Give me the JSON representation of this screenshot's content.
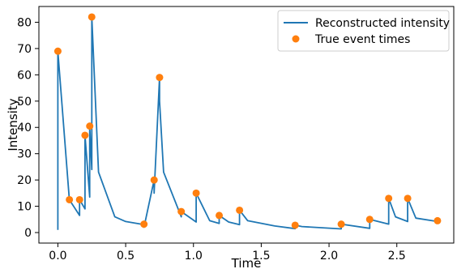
{
  "chart_data": {
    "type": "line",
    "xlabel": "Time",
    "ylabel": "Intensity",
    "xlim": [
      -0.14,
      2.92
    ],
    "ylim": [
      -4,
      86
    ],
    "xticks": [
      0.0,
      0.5,
      1.0,
      1.5,
      2.0,
      2.5
    ],
    "xtick_labels": [
      "0.0",
      "0.5",
      "1.0",
      "1.5",
      "2.0",
      "2.5"
    ],
    "yticks": [
      0,
      10,
      20,
      30,
      40,
      50,
      60,
      70,
      80
    ],
    "ytick_labels": [
      "0",
      "10",
      "20",
      "30",
      "40",
      "50",
      "60",
      "70",
      "80"
    ],
    "grid": false,
    "legend_position": "top-right",
    "series": [
      {
        "name": "Reconstructed intensity",
        "kind": "line",
        "color": "#1f77b4",
        "x": [
          0.0,
          0.0,
          0.085,
          0.085,
          0.16,
          0.16,
          0.2,
          0.2,
          0.235,
          0.235,
          0.25,
          0.25,
          0.3,
          0.42,
          0.5,
          0.635,
          0.635,
          0.71,
          0.71,
          0.75,
          0.75,
          0.78,
          0.91,
          0.91,
          1.02,
          1.02,
          1.12,
          1.19,
          1.19,
          1.26,
          1.34,
          1.34,
          1.4,
          1.6,
          1.75,
          1.75,
          1.8,
          2.09,
          2.09,
          2.3,
          2.3,
          2.44,
          2.44,
          2.49,
          2.58,
          2.58,
          2.64,
          2.8
        ],
        "y": [
          1,
          69,
          12.5,
          12.5,
          6.5,
          12.5,
          9,
          37,
          13.5,
          40.5,
          24,
          82,
          23,
          6,
          4.2,
          3,
          2,
          20,
          15,
          59,
          50,
          23,
          6,
          8,
          4,
          15,
          4.5,
          3.5,
          6.5,
          4,
          3,
          8.5,
          4.5,
          2.5,
          1.5,
          2.8,
          2.3,
          1.4,
          3.2,
          1.6,
          5,
          3.2,
          13,
          6,
          4.2,
          13,
          5.5,
          4.2
        ]
      },
      {
        "name": "True event times",
        "kind": "scatter",
        "color": "#ff7f0e",
        "x": [
          0.0,
          0.085,
          0.16,
          0.2,
          0.235,
          0.25,
          0.635,
          0.71,
          0.75,
          0.91,
          1.02,
          1.19,
          1.34,
          1.75,
          2.09,
          2.3,
          2.44,
          2.58,
          2.8
        ],
        "y": [
          69,
          12.5,
          12.5,
          37,
          40.5,
          82,
          3.2,
          20,
          59,
          8,
          15,
          6.5,
          8.5,
          2.8,
          3.2,
          5,
          13,
          13,
          4.5
        ]
      }
    ]
  }
}
